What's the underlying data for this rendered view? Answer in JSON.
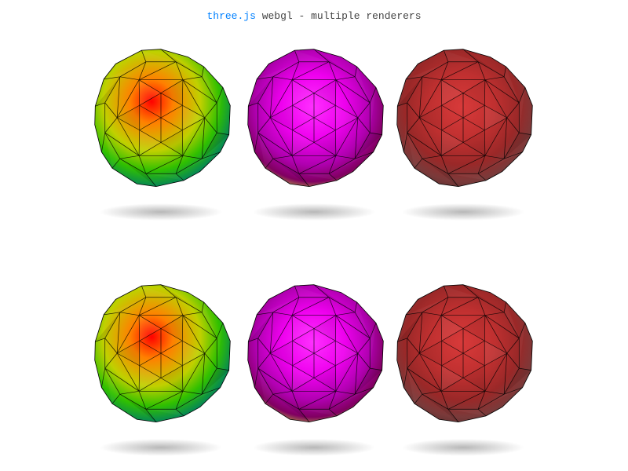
{
  "info": {
    "link_text": "three.js",
    "text": " webgl - multiple renderers"
  },
  "renderers": [
    {
      "id": "top",
      "meshes": [
        {
          "name": "vertex-colored-icosahedron",
          "material": "vertex-colors",
          "colors": [
            "#ff0000",
            "#ff8000",
            "#c0d000",
            "#30c000",
            "#008060",
            "#003030"
          ]
        },
        {
          "name": "magenta-shaded-icosahedron",
          "material": "shaded",
          "colors": [
            "#ff30ff",
            "#ee00ee",
            "#b000b0",
            "#800060",
            "#c0c040",
            "#6a2020"
          ]
        },
        {
          "name": "red-shaded-icosahedron",
          "material": "shaded",
          "colors": [
            "#d83a3a",
            "#c03030",
            "#9a2828",
            "#7a3a3a",
            "#5a3030",
            "#2a1010"
          ]
        }
      ]
    },
    {
      "id": "bottom",
      "meshes": [
        {
          "name": "vertex-colored-icosahedron",
          "material": "vertex-colors",
          "colors": [
            "#ff0000",
            "#ff8000",
            "#c0d000",
            "#30c000",
            "#008060",
            "#003030"
          ]
        },
        {
          "name": "magenta-shaded-icosahedron",
          "material": "shaded",
          "colors": [
            "#ff30ff",
            "#ee00ee",
            "#b000b0",
            "#800060",
            "#c0c040",
            "#6a2020"
          ]
        },
        {
          "name": "red-shaded-icosahedron",
          "material": "shaded",
          "colors": [
            "#d83a3a",
            "#c03030",
            "#9a2828",
            "#7a3a3a",
            "#5a3030",
            "#2a1010"
          ]
        }
      ]
    }
  ]
}
